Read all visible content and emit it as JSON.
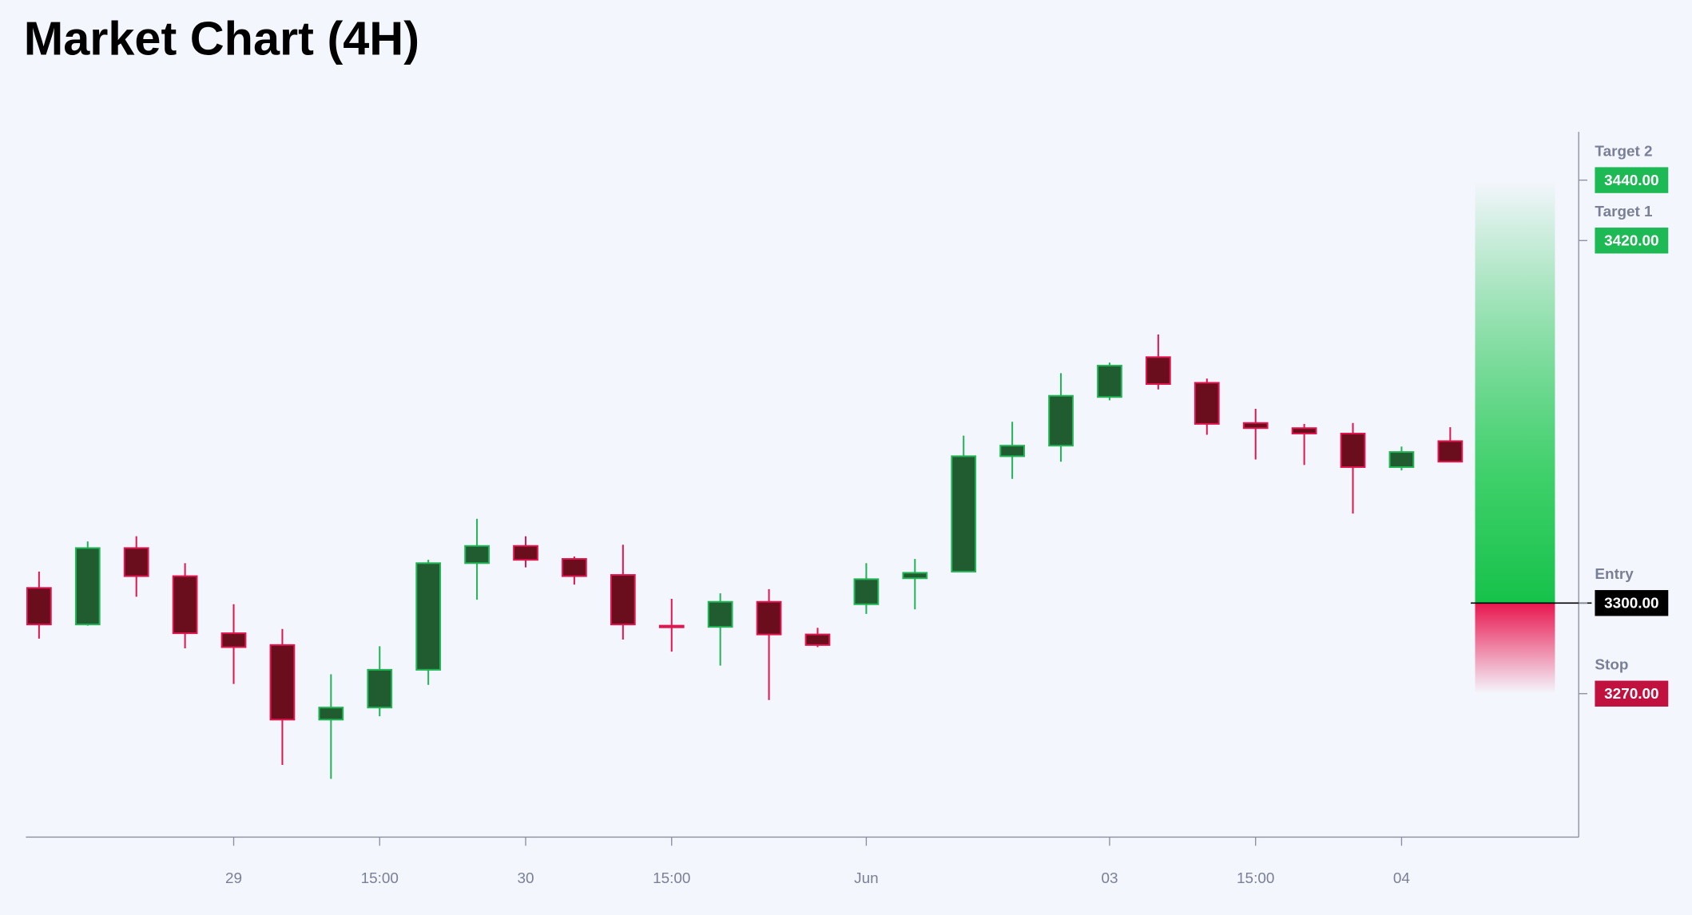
{
  "chart_data": {
    "type": "candlestick",
    "title": "Market Chart (4H)",
    "x": [
      0,
      1,
      2,
      3,
      4,
      5,
      6,
      7,
      8,
      9,
      10,
      11,
      12,
      13,
      14,
      15,
      16,
      17,
      18,
      19,
      20,
      21,
      22,
      23,
      24,
      25,
      26,
      27,
      28,
      29
    ],
    "open": [
      3305.0,
      3292.9,
      3318.2,
      3308.9,
      3290.0,
      3286.1,
      3261.4,
      3265.4,
      3277.9,
      3313.2,
      3318.9,
      3314.6,
      3309.3,
      3292.5,
      3292.1,
      3300.4,
      3289.6,
      3299.6,
      3308.2,
      3310.4,
      3348.6,
      3352.1,
      3368.2,
      3381.4,
      3372.9,
      3359.6,
      3357.9,
      3356.1,
      3345.0,
      3353.6
    ],
    "high": [
      3310.4,
      3320.4,
      3322.1,
      3313.2,
      3299.6,
      3291.4,
      3276.4,
      3285.7,
      3314.3,
      3327.9,
      3322.1,
      3315.4,
      3319.3,
      3301.4,
      3303.2,
      3304.6,
      3291.8,
      3313.2,
      3314.6,
      3355.4,
      3360.0,
      3376.1,
      3379.6,
      3388.9,
      3374.3,
      3364.3,
      3359.3,
      3359.6,
      3351.8,
      3358.2
    ],
    "low": [
      3288.2,
      3292.5,
      3302.1,
      3285.0,
      3273.2,
      3246.4,
      3241.8,
      3262.5,
      3272.9,
      3301.1,
      3311.8,
      3306.1,
      3287.9,
      3283.9,
      3279.3,
      3267.9,
      3285.4,
      3296.4,
      3297.9,
      3310.4,
      3341.1,
      3346.8,
      3367.1,
      3370.7,
      3355.7,
      3347.5,
      3345.7,
      3329.6,
      3343.9,
      3346.8
    ],
    "close": [
      3292.9,
      3318.2,
      3308.9,
      3290.0,
      3285.4,
      3261.4,
      3265.4,
      3277.9,
      3313.2,
      3318.9,
      3314.3,
      3308.9,
      3292.9,
      3292.1,
      3300.4,
      3289.6,
      3286.1,
      3307.9,
      3310.0,
      3348.6,
      3352.1,
      3368.6,
      3378.6,
      3372.5,
      3359.3,
      3357.9,
      3356.1,
      3345.0,
      3350.0,
      3346.8
    ],
    "up_color": "#22b455",
    "down_color": "#e0174f",
    "xlim": [
      -0.27,
      31.64
    ],
    "ylim": [
      3222.5,
      3456
    ],
    "xticks": [
      {
        "value": 4,
        "label": "29"
      },
      {
        "value": 7,
        "label": "15:00"
      },
      {
        "value": 10,
        "label": "30"
      },
      {
        "value": 13,
        "label": "15:00"
      },
      {
        "value": 17,
        "label": "Jun"
      },
      {
        "value": 22,
        "label": "03"
      },
      {
        "value": 25,
        "label": "15:00"
      },
      {
        "value": 28,
        "label": "04"
      }
    ],
    "levels": {
      "names": [
        "Target 2",
        "Target 1",
        "Entry",
        "Stop"
      ],
      "values": [
        3440,
        3420,
        3300,
        3270
      ],
      "value_labels": [
        "3440.00",
        "3420.00",
        "3300.00",
        "3270.00"
      ],
      "colors": [
        "#1db954",
        "#1db954",
        "#000000",
        "#c0113f"
      ]
    }
  }
}
